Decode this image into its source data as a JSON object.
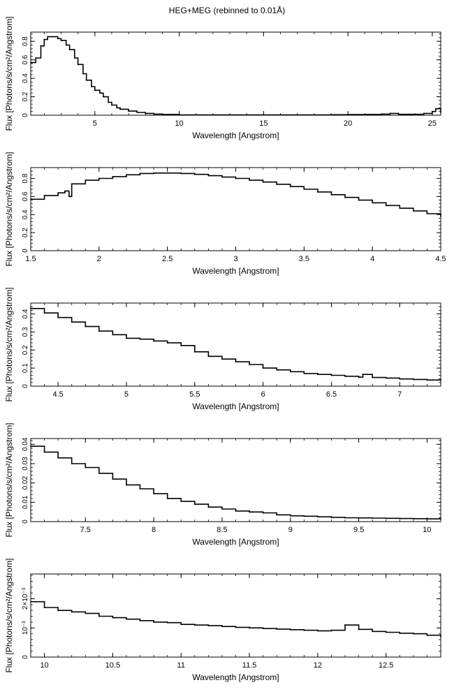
{
  "figure": {
    "title": "HEG+MEG (rebinned to 0.01Å)"
  },
  "chart_data": [
    {
      "type": "line",
      "xlabel": "Wavelength [Angstrom]",
      "ylabel": "Flux [Photons/s/cm²/Angstrom]",
      "xlim": [
        1.2,
        25.5
      ],
      "ylim": [
        0,
        0.9
      ],
      "xticks": [
        5,
        10,
        15,
        20,
        25
      ],
      "yticks": [
        0,
        0.2,
        0.4,
        0.6,
        0.8
      ],
      "ytick_labels": [
        "0",
        "0.2",
        "0.4",
        "0.6",
        "0.8"
      ],
      "series": [
        {
          "x": [
            1.2,
            1.5,
            1.8,
            2.0,
            2.2,
            2.5,
            2.8,
            3.0,
            3.3,
            3.5,
            3.8,
            4.0,
            4.3,
            4.5,
            4.8,
            5.0,
            5.3,
            5.5,
            5.8,
            6.0,
            6.3,
            6.5,
            7.0,
            7.5,
            8.0,
            8.5,
            9.0,
            10.0,
            11.0,
            13.0,
            15.0,
            17.0,
            19.0,
            20.0,
            21.0,
            22.0,
            22.5,
            23.0,
            24.0,
            24.5,
            25.0,
            25.2,
            25.5
          ],
          "y": [
            0.57,
            0.62,
            0.75,
            0.82,
            0.85,
            0.85,
            0.83,
            0.81,
            0.76,
            0.71,
            0.62,
            0.55,
            0.45,
            0.38,
            0.31,
            0.27,
            0.24,
            0.2,
            0.14,
            0.11,
            0.08,
            0.065,
            0.045,
            0.03,
            0.02,
            0.012,
            0.008,
            0.004,
            0.003,
            0.003,
            0.004,
            0.004,
            0.005,
            0.007,
            0.008,
            0.012,
            0.02,
            0.01,
            0.01,
            0.02,
            0.04,
            0.07,
            0.03
          ]
        }
      ]
    },
    {
      "type": "line",
      "xlabel": "Wavelength [Angstrom]",
      "ylabel": "Flux [Photons/s/cm²/Angstrom]",
      "xlim": [
        1.5,
        4.5
      ],
      "ylim": [
        0,
        0.92
      ],
      "xticks": [
        1.5,
        2,
        2.5,
        3,
        3.5,
        4,
        4.5
      ],
      "yticks": [
        0,
        0.2,
        0.4,
        0.6,
        0.8
      ],
      "ytick_labels": [
        "0",
        "0.2",
        "0.4",
        "0.6",
        "0.8"
      ],
      "series": [
        {
          "x": [
            1.5,
            1.6,
            1.7,
            1.75,
            1.78,
            1.8,
            1.9,
            2.0,
            2.1,
            2.2,
            2.3,
            2.4,
            2.5,
            2.6,
            2.7,
            2.8,
            2.9,
            3.0,
            3.1,
            3.2,
            3.3,
            3.4,
            3.5,
            3.6,
            3.7,
            3.8,
            3.9,
            4.0,
            4.1,
            4.2,
            4.3,
            4.4,
            4.5
          ],
          "y": [
            0.57,
            0.61,
            0.64,
            0.66,
            0.6,
            0.74,
            0.78,
            0.8,
            0.82,
            0.84,
            0.855,
            0.86,
            0.86,
            0.855,
            0.845,
            0.83,
            0.815,
            0.8,
            0.78,
            0.76,
            0.735,
            0.71,
            0.68,
            0.65,
            0.62,
            0.59,
            0.56,
            0.53,
            0.5,
            0.47,
            0.44,
            0.41,
            0.38
          ]
        }
      ]
    },
    {
      "type": "line",
      "xlabel": "Wavelength [Angstrom]",
      "ylabel": "Flux [Photons/s/cm²/Angstrom]",
      "xlim": [
        4.3,
        7.3
      ],
      "ylim": [
        0,
        0.46
      ],
      "xticks": [
        4.5,
        5,
        5.5,
        6,
        6.5,
        7
      ],
      "yticks": [
        0,
        0.1,
        0.2,
        0.3,
        0.4
      ],
      "ytick_labels": [
        "0",
        "0.1",
        "0.2",
        "0.3",
        "0.4"
      ],
      "series": [
        {
          "x": [
            4.3,
            4.4,
            4.5,
            4.6,
            4.7,
            4.8,
            4.9,
            5.0,
            5.1,
            5.2,
            5.3,
            5.4,
            5.5,
            5.6,
            5.7,
            5.8,
            5.9,
            6.0,
            6.1,
            6.2,
            6.3,
            6.4,
            6.5,
            6.6,
            6.7,
            6.73,
            6.8,
            6.9,
            7.0,
            7.1,
            7.2,
            7.3
          ],
          "y": [
            0.43,
            0.405,
            0.38,
            0.355,
            0.33,
            0.305,
            0.285,
            0.265,
            0.26,
            0.25,
            0.24,
            0.225,
            0.19,
            0.165,
            0.15,
            0.135,
            0.12,
            0.1,
            0.09,
            0.08,
            0.07,
            0.065,
            0.06,
            0.055,
            0.05,
            0.065,
            0.048,
            0.045,
            0.04,
            0.037,
            0.034,
            0.032
          ]
        }
      ]
    },
    {
      "type": "line",
      "xlabel": "Wavelength [Angstrom]",
      "ylabel": "Flux [Photons/s/cm²/Angstrom]",
      "xlim": [
        7.1,
        10.1
      ],
      "ylim": [
        0,
        0.043
      ],
      "xticks": [
        7.5,
        8,
        8.5,
        9,
        9.5,
        10
      ],
      "yticks": [
        0,
        0.01,
        0.02,
        0.03,
        0.04
      ],
      "ytick_labels": [
        "0",
        "0.01",
        "0.02",
        "0.03",
        "0.04"
      ],
      "series": [
        {
          "x": [
            7.1,
            7.2,
            7.3,
            7.4,
            7.5,
            7.6,
            7.7,
            7.8,
            7.9,
            8.0,
            8.1,
            8.2,
            8.3,
            8.4,
            8.5,
            8.6,
            8.7,
            8.8,
            8.9,
            9.0,
            9.1,
            9.2,
            9.3,
            9.4,
            9.5,
            9.6,
            9.7,
            9.8,
            9.9,
            10.0,
            10.1
          ],
          "y": [
            0.039,
            0.036,
            0.033,
            0.03,
            0.028,
            0.025,
            0.022,
            0.019,
            0.017,
            0.0145,
            0.012,
            0.0105,
            0.009,
            0.0075,
            0.0065,
            0.0055,
            0.005,
            0.0045,
            0.0035,
            0.003,
            0.0028,
            0.0025,
            0.0022,
            0.002,
            0.0019,
            0.0018,
            0.0017,
            0.0016,
            0.0015,
            0.0014,
            0.0013
          ]
        }
      ]
    },
    {
      "type": "line",
      "xlabel": "Wavelength [Angstrom]",
      "ylabel": "Flux [Photons/s/cm²/Angstrom]",
      "xlim": [
        9.9,
        12.9
      ],
      "ylim": [
        0,
        0.00285
      ],
      "xticks": [
        10,
        10.5,
        11,
        11.5,
        12,
        12.5
      ],
      "yticks": [
        0,
        0.001,
        0.002
      ],
      "ytick_labels": [
        "0",
        "10⁻³",
        "2×10⁻³"
      ],
      "series": [
        {
          "x": [
            9.9,
            10.0,
            10.1,
            10.2,
            10.3,
            10.4,
            10.5,
            10.6,
            10.7,
            10.8,
            10.9,
            11.0,
            11.1,
            11.2,
            11.3,
            11.4,
            11.5,
            11.6,
            11.7,
            11.8,
            11.9,
            12.0,
            12.1,
            12.2,
            12.3,
            12.4,
            12.5,
            12.6,
            12.7,
            12.8,
            12.9
          ],
          "y": [
            0.0019,
            0.0017,
            0.0016,
            0.00155,
            0.0015,
            0.0014,
            0.00135,
            0.0013,
            0.00125,
            0.0012,
            0.00118,
            0.00112,
            0.0011,
            0.00108,
            0.00105,
            0.00102,
            0.001,
            0.00098,
            0.00096,
            0.00094,
            0.00092,
            0.0009,
            0.00092,
            0.0011,
            0.00095,
            0.00088,
            0.00085,
            0.00082,
            0.0008,
            0.00075,
            0.0007
          ]
        }
      ]
    }
  ]
}
